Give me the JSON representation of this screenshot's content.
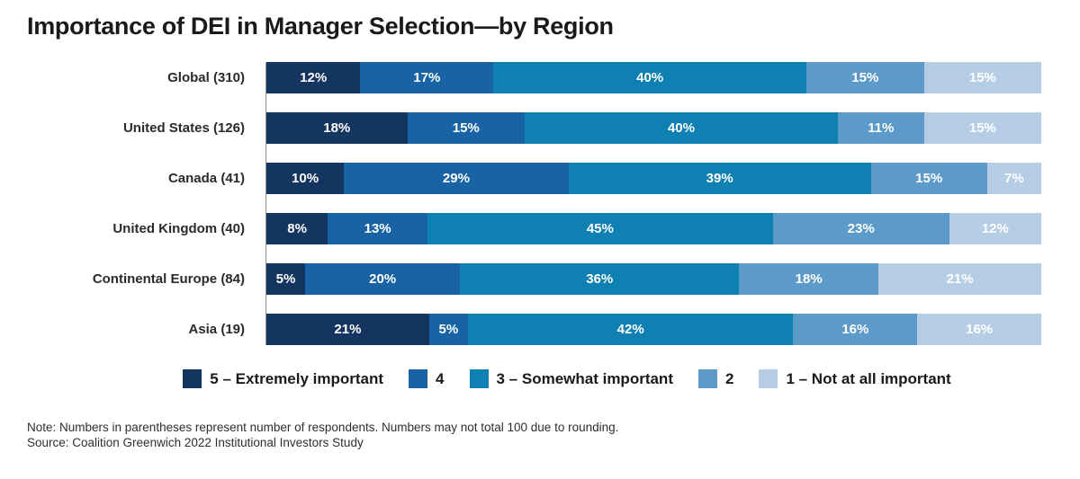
{
  "title": "Importance of DEI in Manager Selection—by Region",
  "chart_data": {
    "type": "bar",
    "orientation": "horizontal",
    "stacked": true,
    "unit": "%",
    "value_label_format": "{value}%",
    "legend_position": "bottom",
    "categories": [
      "Global (310)",
      "United States (126)",
      "Canada (41)",
      "United Kingdom (40)",
      "Continental Europe (84)",
      "Asia (19)"
    ],
    "series": [
      {
        "name": "5 – Extremely important",
        "color": "#14355f",
        "values": [
          12,
          18,
          10,
          8,
          5,
          21
        ]
      },
      {
        "name": "4",
        "color": "#1763a4",
        "values": [
          17,
          15,
          29,
          13,
          20,
          5
        ]
      },
      {
        "name": "3 – Somewhat important",
        "color": "#0f80b2",
        "values": [
          40,
          40,
          39,
          45,
          36,
          42
        ]
      },
      {
        "name": "2",
        "color": "#5c9bc9",
        "values": [
          15,
          11,
          15,
          23,
          18,
          16
        ]
      },
      {
        "name": "1 – Not at all important",
        "color": "#b5cee5",
        "values": [
          15,
          15,
          7,
          12,
          21,
          16
        ]
      }
    ]
  },
  "footer": {
    "note": "Note: Numbers in parentheses represent number of respondents. Numbers may not total 100 due to rounding.",
    "source": "Source: Coalition Greenwich 2022 Institutional Investors Study"
  }
}
